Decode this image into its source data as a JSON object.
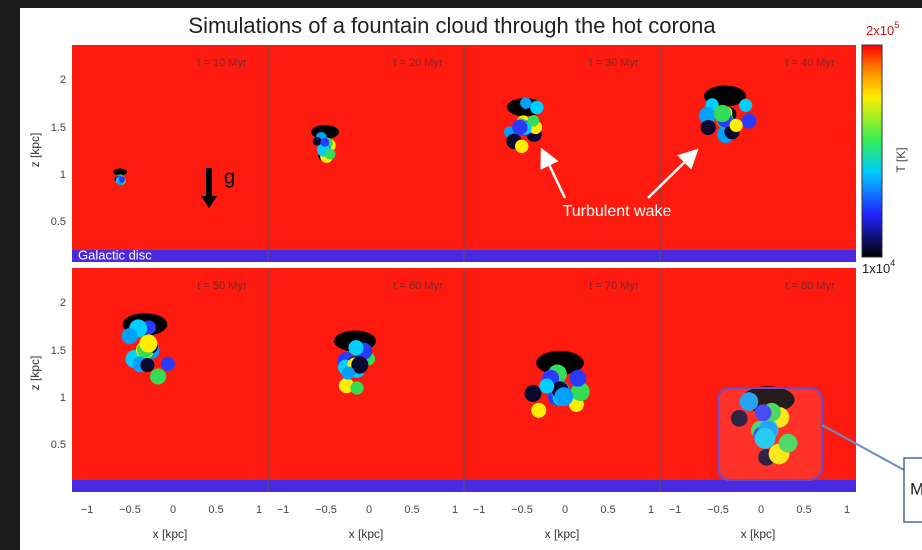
{
  "title": "Simulations of a fountain cloud through the hot corona",
  "panels": [
    {
      "time": "t = 10 Myr"
    },
    {
      "time": "t = 20 Myr"
    },
    {
      "time": "t = 30 Myr"
    },
    {
      "time": "t = 40 Myr"
    },
    {
      "time": "t = 50 Myr"
    },
    {
      "time": "t = 60 Myr"
    },
    {
      "time": "t = 70 Myr"
    },
    {
      "time": "t = 80 Myr"
    }
  ],
  "z_axis": {
    "label": "z [kpc]",
    "ticks": [
      "2",
      "1.5",
      "1",
      "0.5"
    ]
  },
  "x_axis": {
    "label": "x [kpc]",
    "ticks": [
      "−1",
      "−0.5",
      "0",
      "0.5",
      "1"
    ]
  },
  "colorbar": {
    "label": "T [K]",
    "max": {
      "base": "2x10",
      "exp": "5"
    },
    "min": {
      "base": "1x10",
      "exp": "4"
    }
  },
  "annotations": {
    "gravity": "g",
    "disc": "Galactic disc",
    "wake": "Turbulent wake",
    "callout": "M"
  }
}
